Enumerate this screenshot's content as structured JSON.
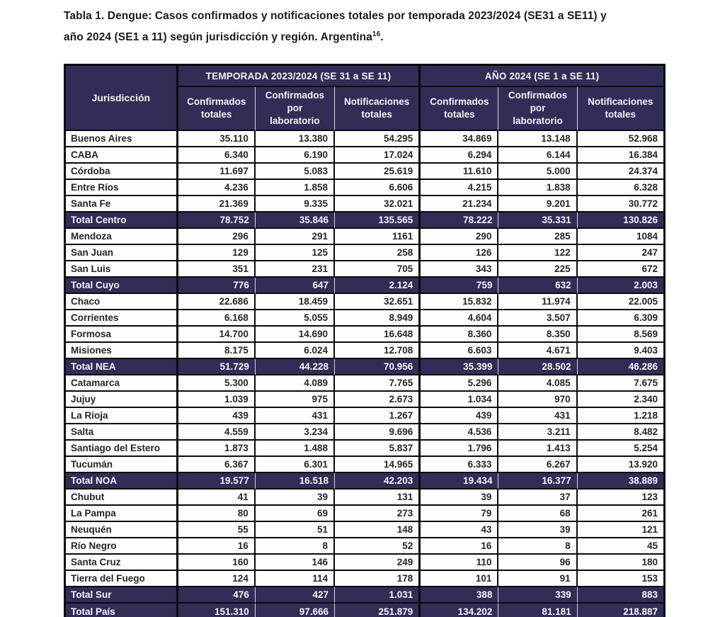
{
  "title": {
    "text": "Tabla 1. Dengue: Casos confirmados y notificaciones totales por temporada 2023/2024 (SE31 a SE11) y año 2024 (SE1 a 11) según jurisdicción y región. Argentina",
    "superscript": "16",
    "suffix": "."
  },
  "colors": {
    "header_navy": "#302e56",
    "body_text": "#262626",
    "border_black": "#0a0a0a"
  },
  "table": {
    "corner_header": "Jurisdicción",
    "group_headers": [
      "TEMPORADA 2023/2024 (SE 31 a SE 11)",
      "AÑO 2024 (SE 1 a SE 11)"
    ],
    "sub_headers": [
      "Confirmados\ntotales",
      "Confirmados\npor\nlaboratorio",
      "Notificaciones\ntotales",
      "Confirmados\ntotales",
      "Confirmados\npor\nlaboratorio",
      "Notificaciones\ntotales"
    ],
    "rows": [
      {
        "jurisdiccion": "Buenos Aires",
        "values": [
          "35.110",
          "13.380",
          "54.295",
          "34.869",
          "13.148",
          "52.968"
        ],
        "is_total": false
      },
      {
        "jurisdiccion": "CABA",
        "values": [
          "6.340",
          "6.190",
          "17.024",
          "6.294",
          "6.144",
          "16.384"
        ],
        "is_total": false
      },
      {
        "jurisdiccion": "Córdoba",
        "values": [
          "11.697",
          "5.083",
          "25.619",
          "11.610",
          "5.000",
          "24.374"
        ],
        "is_total": false
      },
      {
        "jurisdiccion": "Entre Ríos",
        "values": [
          "4.236",
          "1.858",
          "6.606",
          "4.215",
          "1.838",
          "6.328"
        ],
        "is_total": false
      },
      {
        "jurisdiccion": "Santa Fe",
        "values": [
          "21.369",
          "9.335",
          "32.021",
          "21.234",
          "9.201",
          "30.772"
        ],
        "is_total": false
      },
      {
        "jurisdiccion": "Total Centro",
        "values": [
          "78.752",
          "35.846",
          "135.565",
          "78.222",
          "35.331",
          "130.826"
        ],
        "is_total": true
      },
      {
        "jurisdiccion": "Mendoza",
        "values": [
          "296",
          "291",
          "1161",
          "290",
          "285",
          "1084"
        ],
        "is_total": false
      },
      {
        "jurisdiccion": "San Juan",
        "values": [
          "129",
          "125",
          "258",
          "126",
          "122",
          "247"
        ],
        "is_total": false
      },
      {
        "jurisdiccion": "San Luis",
        "values": [
          "351",
          "231",
          "705",
          "343",
          "225",
          "672"
        ],
        "is_total": false
      },
      {
        "jurisdiccion": "Total Cuyo",
        "values": [
          "776",
          "647",
          "2.124",
          "759",
          "632",
          "2.003"
        ],
        "is_total": true
      },
      {
        "jurisdiccion": "Chaco",
        "values": [
          "22.686",
          "18.459",
          "32.651",
          "15.832",
          "11.974",
          "22.005"
        ],
        "is_total": false
      },
      {
        "jurisdiccion": "Corrientes",
        "values": [
          "6.168",
          "5.055",
          "8.949",
          "4.604",
          "3.507",
          "6.309"
        ],
        "is_total": false
      },
      {
        "jurisdiccion": "Formosa",
        "values": [
          "14.700",
          "14.690",
          "16.648",
          "8.360",
          "8.350",
          "8.569"
        ],
        "is_total": false
      },
      {
        "jurisdiccion": "Misiones",
        "values": [
          "8.175",
          "6.024",
          "12.708",
          "6.603",
          "4.671",
          "9.403"
        ],
        "is_total": false
      },
      {
        "jurisdiccion": "Total NEA",
        "values": [
          "51.729",
          "44.228",
          "70.956",
          "35.399",
          "28.502",
          "46.286"
        ],
        "is_total": true
      },
      {
        "jurisdiccion": "Catamarca",
        "values": [
          "5.300",
          "4.089",
          "7.765",
          "5.296",
          "4.085",
          "7.675"
        ],
        "is_total": false
      },
      {
        "jurisdiccion": "Jujuy",
        "values": [
          "1.039",
          "975",
          "2.673",
          "1.034",
          "970",
          "2.340"
        ],
        "is_total": false
      },
      {
        "jurisdiccion": "La Rioja",
        "values": [
          "439",
          "431",
          "1.267",
          "439",
          "431",
          "1.218"
        ],
        "is_total": false
      },
      {
        "jurisdiccion": "Salta",
        "values": [
          "4.559",
          "3.234",
          "9.696",
          "4.536",
          "3.211",
          "8.482"
        ],
        "is_total": false
      },
      {
        "jurisdiccion": "Santiago del Estero",
        "values": [
          "1.873",
          "1.488",
          "5.837",
          "1.796",
          "1.413",
          "5.254"
        ],
        "is_total": false
      },
      {
        "jurisdiccion": "Tucumán",
        "values": [
          "6.367",
          "6.301",
          "14.965",
          "6.333",
          "6.267",
          "13.920"
        ],
        "is_total": false
      },
      {
        "jurisdiccion": "Total NOA",
        "values": [
          "19.577",
          "16.518",
          "42.203",
          "19.434",
          "16.377",
          "38.889"
        ],
        "is_total": true
      },
      {
        "jurisdiccion": "Chubut",
        "values": [
          "41",
          "39",
          "131",
          "39",
          "37",
          "123"
        ],
        "is_total": false
      },
      {
        "jurisdiccion": "La Pampa",
        "values": [
          "80",
          "69",
          "273",
          "79",
          "68",
          "261"
        ],
        "is_total": false
      },
      {
        "jurisdiccion": "Neuquén",
        "values": [
          "55",
          "51",
          "148",
          "43",
          "39",
          "121"
        ],
        "is_total": false
      },
      {
        "jurisdiccion": "Río Negro",
        "values": [
          "16",
          "8",
          "52",
          "16",
          "8",
          "45"
        ],
        "is_total": false
      },
      {
        "jurisdiccion": "Santa Cruz",
        "values": [
          "160",
          "146",
          "249",
          "110",
          "96",
          "180"
        ],
        "is_total": false
      },
      {
        "jurisdiccion": "Tierra del Fuego",
        "values": [
          "124",
          "114",
          "178",
          "101",
          "91",
          "153"
        ],
        "is_total": false
      },
      {
        "jurisdiccion": "Total Sur",
        "values": [
          "476",
          "427",
          "1.031",
          "388",
          "339",
          "883"
        ],
        "is_total": true
      },
      {
        "jurisdiccion": "Total País",
        "values": [
          "151.310",
          "97.666",
          "251.879",
          "134.202",
          "81.181",
          "218.887"
        ],
        "is_total": true
      }
    ]
  }
}
